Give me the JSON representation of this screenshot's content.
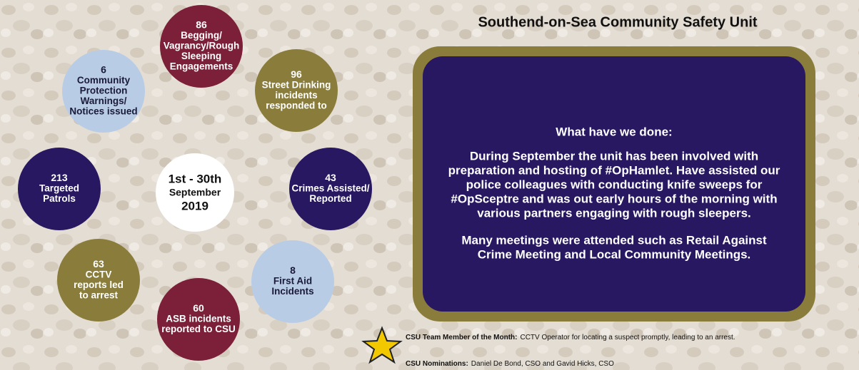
{
  "title": "Southend-on-Sea Community Safety Unit",
  "period": [
    "1st - 30th",
    "September",
    "2019"
  ],
  "stats": [
    {
      "value": 86,
      "label": [
        "Begging/",
        "Vagrancy/Rough",
        "Sleeping",
        "Engagements"
      ]
    },
    {
      "value": 96,
      "label": [
        "Street Drinking",
        "incidents",
        "responded to"
      ]
    },
    {
      "value": 43,
      "label": [
        "Crimes Assisted/",
        "Reported"
      ]
    },
    {
      "value": 8,
      "label": [
        "First Aid",
        "Incidents"
      ]
    },
    {
      "value": 60,
      "label": [
        "ASB incidents",
        "reported to CSU"
      ]
    },
    {
      "value": 63,
      "label": [
        "CCTV",
        "reports led",
        "to arrest"
      ]
    },
    {
      "value": 213,
      "label": [
        "Targeted",
        "Patrols"
      ]
    },
    {
      "value": 6,
      "label": [
        "Community",
        "Protection",
        "Warnings/",
        "Notices issued"
      ]
    }
  ],
  "panel": {
    "heading": "What have we done:",
    "paragraphs": [
      [
        "During September the unit has been involved with",
        "preparation and hosting of #OpHamlet. Have assisted our",
        "police colleagues with conducting knife sweeps for",
        "#OpSceptre and was out early hours of the morning with",
        "various partners engaging with rough sleepers."
      ],
      [
        "Many meetings were attended such as Retail Against",
        "Crime Meeting and Local Community Meetings."
      ]
    ]
  },
  "footer": {
    "team_member": {
      "label": "CSU Team Member of the Month:",
      "text": "CCTV Operator for locating a suspect promptly, leading to an arrest."
    },
    "nominations": {
      "label": "CSU Nominations:",
      "text": "Daniel De Bond, CSO and Gavid Hicks, CSO"
    }
  }
}
